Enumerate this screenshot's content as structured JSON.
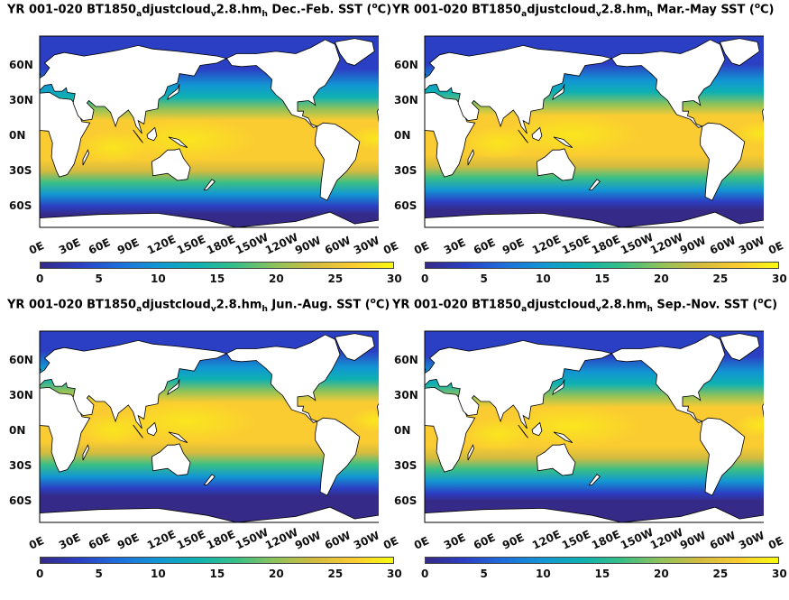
{
  "panels": [
    {
      "id": "djf",
      "title_prefix": "YR 001-020 BT1850",
      "sub1": "a",
      "mid": "djustcloud",
      "sub2": "v",
      "ver": "2.8.hm",
      "sub3": "h",
      "season": " Dec.-Feb. SST (",
      "sup": "o",
      "unit": "C)"
    },
    {
      "id": "mam",
      "title_prefix": "YR 001-020 BT1850",
      "sub1": "a",
      "mid": "djustcloud",
      "sub2": "v",
      "ver": "2.8.hm",
      "sub3": "h",
      "season": " Mar.-May SST (",
      "sup": "o",
      "unit": "C)"
    },
    {
      "id": "jja",
      "title_prefix": "YR 001-020 BT1850",
      "sub1": "a",
      "mid": "djustcloud",
      "sub2": "v",
      "ver": "2.8.hm",
      "sub3": "h",
      "season": " Jun.-Aug. SST (",
      "sup": "o",
      "unit": "C)"
    },
    {
      "id": "son",
      "title_prefix": "YR 001-020 BT1850",
      "sub1": "a",
      "mid": "djustcloud",
      "sub2": "v",
      "ver": "2.8.hm",
      "sub3": "h",
      "season": " Sep.-Nov. SST (",
      "sup": "o",
      "unit": "C)"
    }
  ],
  "lat_ticks": [
    "60N",
    "30N",
    "0N",
    "30S",
    "60S"
  ],
  "lon_ticks": [
    "0E",
    "30E",
    "60E",
    "90E",
    "120E",
    "150E",
    "180E",
    "150W",
    "120W",
    "90W",
    "60W",
    "30W",
    "0E"
  ],
  "colorbar": {
    "ticks": [
      "0",
      "5",
      "10",
      "15",
      "20",
      "25",
      "30"
    ],
    "range": [
      0,
      30
    ],
    "colors": [
      "#352a87",
      "#2b3fc4",
      "#1d6fdc",
      "#1296d3",
      "#0eb1b1",
      "#38bf86",
      "#8fc25a",
      "#d3bb3f",
      "#fbcc31",
      "#f9fb0e"
    ]
  },
  "land_color": "#ffffff"
}
